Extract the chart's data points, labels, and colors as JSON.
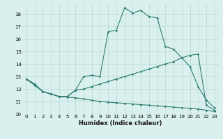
{
  "xlabel": "Humidex (Indice chaleur)",
  "x": [
    0,
    1,
    2,
    3,
    4,
    5,
    6,
    7,
    8,
    9,
    10,
    11,
    12,
    13,
    14,
    15,
    16,
    17,
    18,
    19,
    20,
    21,
    22,
    23
  ],
  "line1": [
    12.8,
    12.4,
    11.8,
    11.6,
    11.4,
    11.4,
    11.9,
    13.0,
    13.1,
    13.0,
    16.6,
    16.7,
    18.5,
    18.1,
    18.3,
    17.8,
    17.7,
    15.4,
    15.2,
    14.5,
    13.8,
    12.2,
    11.1,
    10.5
  ],
  "line2": [
    12.8,
    12.4,
    11.8,
    11.6,
    11.4,
    11.4,
    11.9,
    12.0,
    12.2,
    12.4,
    12.6,
    12.8,
    13.0,
    13.2,
    13.4,
    13.6,
    13.8,
    14.0,
    14.2,
    14.5,
    14.7,
    14.8,
    10.7,
    10.3
  ],
  "line3": [
    12.8,
    12.3,
    11.8,
    11.6,
    11.4,
    11.35,
    11.3,
    11.2,
    11.1,
    11.0,
    10.95,
    10.9,
    10.85,
    10.8,
    10.75,
    10.7,
    10.65,
    10.6,
    10.55,
    10.5,
    10.45,
    10.4,
    10.3,
    10.2
  ],
  "ylim": [
    10,
    18.8
  ],
  "xlim": [
    -0.5,
    23.5
  ],
  "yticks": [
    10,
    11,
    12,
    13,
    14,
    15,
    16,
    17,
    18
  ],
  "xticks": [
    0,
    1,
    2,
    3,
    4,
    5,
    6,
    7,
    8,
    9,
    10,
    11,
    12,
    13,
    14,
    15,
    16,
    17,
    18,
    19,
    20,
    21,
    22,
    23
  ],
  "line_color": "#2e7d6e",
  "bg_color": "#daf0ee",
  "grid_color": "#b8d8d5",
  "tick_fontsize": 5.0,
  "xlabel_fontsize": 6.0
}
